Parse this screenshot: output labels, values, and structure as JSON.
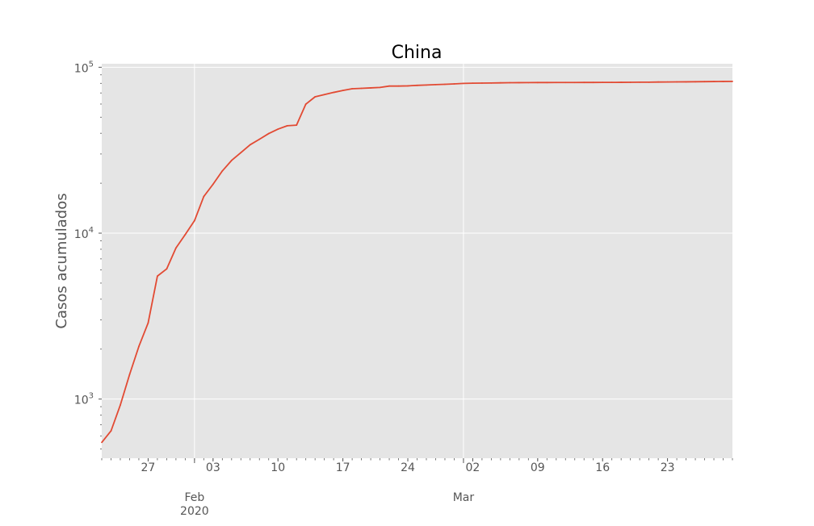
{
  "chart_data": {
    "type": "line",
    "title": "China",
    "ylabel": "Casos acumulados",
    "xlabel": "",
    "yscale": "log",
    "xlim": [
      "2020-01-22",
      "2020-03-30"
    ],
    "ylim": [
      440,
      105000
    ],
    "grid": true,
    "colors": {
      "line": "#E24A33",
      "plot_background": "#E5E5E5",
      "grid": "#FFFFFF"
    },
    "y_ticks": [
      {
        "value": 1000,
        "base": "10",
        "exp": "3"
      },
      {
        "value": 10000,
        "base": "10",
        "exp": "4"
      },
      {
        "value": 100000,
        "base": "10",
        "exp": "5"
      }
    ],
    "x_ticks_minor": [
      {
        "date": "2020-01-27",
        "label": "27"
      },
      {
        "date": "2020-02-03",
        "label": "03"
      },
      {
        "date": "2020-02-10",
        "label": "10"
      },
      {
        "date": "2020-02-17",
        "label": "17"
      },
      {
        "date": "2020-02-24",
        "label": "24"
      },
      {
        "date": "2020-03-02",
        "label": "02"
      },
      {
        "date": "2020-03-09",
        "label": "09"
      },
      {
        "date": "2020-03-16",
        "label": "16"
      },
      {
        "date": "2020-03-23",
        "label": "23"
      }
    ],
    "x_ticks_major": [
      {
        "date": "2020-02-01",
        "label": "Feb",
        "sublabel": "2020"
      },
      {
        "date": "2020-03-01",
        "label": "Mar",
        "sublabel": ""
      }
    ],
    "series": [
      {
        "x": [
          "2020-01-22",
          "2020-01-23",
          "2020-01-24",
          "2020-01-25",
          "2020-01-26",
          "2020-01-27",
          "2020-01-28",
          "2020-01-29",
          "2020-01-30",
          "2020-01-31",
          "2020-02-01",
          "2020-02-02",
          "2020-02-03",
          "2020-02-04",
          "2020-02-05",
          "2020-02-06",
          "2020-02-07",
          "2020-02-08",
          "2020-02-09",
          "2020-02-10",
          "2020-02-11",
          "2020-02-12",
          "2020-02-13",
          "2020-02-14",
          "2020-02-15",
          "2020-02-16",
          "2020-02-17",
          "2020-02-18",
          "2020-02-19",
          "2020-02-20",
          "2020-02-21",
          "2020-02-22",
          "2020-02-23",
          "2020-02-24",
          "2020-02-25",
          "2020-02-26",
          "2020-02-27",
          "2020-02-28",
          "2020-02-29",
          "2020-03-01",
          "2020-03-02",
          "2020-03-03",
          "2020-03-04",
          "2020-03-05",
          "2020-03-06",
          "2020-03-07",
          "2020-03-08",
          "2020-03-09",
          "2020-03-10",
          "2020-03-11",
          "2020-03-12",
          "2020-03-13",
          "2020-03-14",
          "2020-03-15",
          "2020-03-16",
          "2020-03-17",
          "2020-03-18",
          "2020-03-19",
          "2020-03-20",
          "2020-03-21",
          "2020-03-22",
          "2020-03-23",
          "2020-03-24",
          "2020-03-25",
          "2020-03-26",
          "2020-03-27",
          "2020-03-28",
          "2020-03-29",
          "2020-03-30"
        ],
        "values": [
          548,
          643,
          920,
          1406,
          2075,
          2877,
          5509,
          6087,
          8141,
          9802,
          11891,
          16630,
          19716,
          23707,
          27440,
          30587,
          34110,
          36814,
          39829,
          42354,
          44386,
          44759,
          59895,
          66358,
          68413,
          70513,
          72434,
          74211,
          74619,
          75077,
          75550,
          77001,
          77022,
          77241,
          77754,
          78166,
          78600,
          78928,
          79356,
          79932,
          80136,
          80261,
          80386,
          80537,
          80690,
          80770,
          80823,
          80860,
          80887,
          80921,
          80932,
          80945,
          80977,
          81003,
          81033,
          81058,
          81102,
          81156,
          81250,
          81305,
          81435,
          81498,
          81591,
          81661,
          81782,
          81897,
          81999,
          82122,
          82198
        ]
      }
    ]
  }
}
